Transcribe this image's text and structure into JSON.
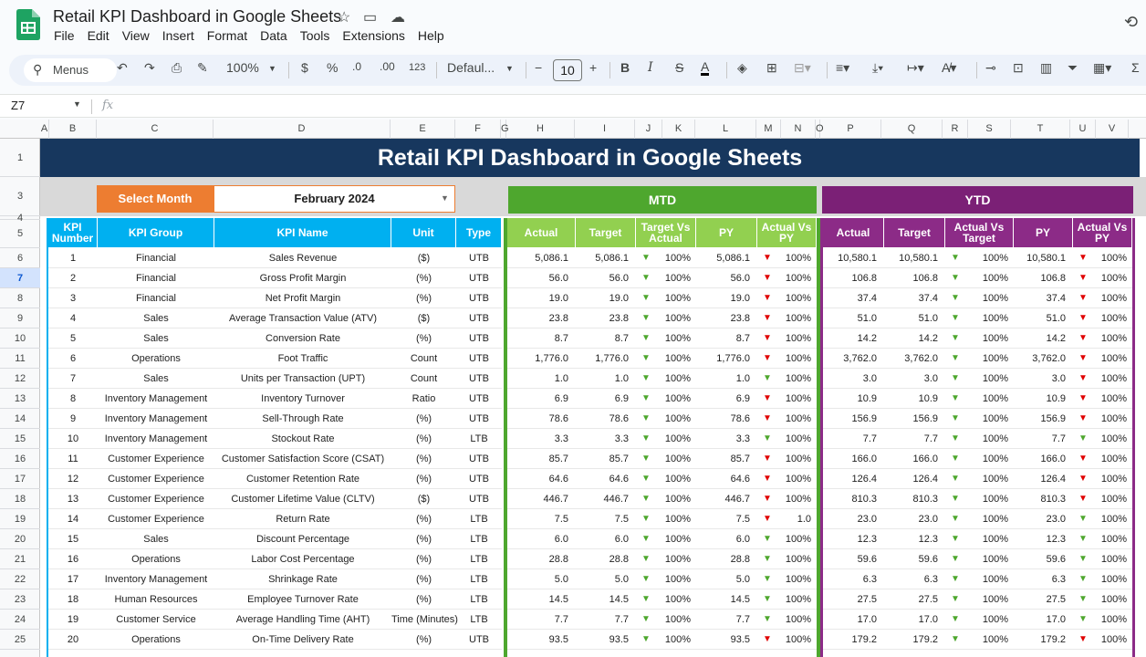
{
  "window": {
    "title": "Retail KPI Dashboard in Google Sheets",
    "app_icon": "google-sheets-icon"
  },
  "menu": [
    "File",
    "Edit",
    "View",
    "Insert",
    "Format",
    "Data",
    "Tools",
    "Extensions",
    "Help"
  ],
  "toolbar": {
    "menus_label": "Menus",
    "zoom": "100%",
    "currency": "$",
    "percent": "%",
    "dec_decrease": ".0",
    "dec_increase": ".00",
    "num_format": "123",
    "font": "Defaul...",
    "font_size": "10",
    "bold": "B",
    "italic": "I",
    "strike": "S",
    "text_color": "A"
  },
  "formula_bar": {
    "name_box": "Z7",
    "fx": "fx"
  },
  "columns": [
    "A",
    "B",
    "C",
    "D",
    "E",
    "F",
    "G",
    "H",
    "I",
    "J",
    "K",
    "L",
    "M",
    "N",
    "O",
    "P",
    "Q",
    "R",
    "S",
    "T",
    "U",
    "V"
  ],
  "row_numbers": [
    "1",
    "3",
    "4",
    "5",
    "6",
    "7",
    "8",
    "9",
    "10",
    "11",
    "12",
    "13",
    "14",
    "15",
    "16",
    "17",
    "18",
    "19",
    "20",
    "21",
    "22",
    "23",
    "24",
    "25"
  ],
  "selected_row": "7",
  "dashboard": {
    "title": "Retail KPI Dashboard in Google Sheets",
    "select_month_label": "Select Month",
    "selected_month": "February 2024",
    "mtd_label": "MTD",
    "ytd_label": "YTD",
    "headers": {
      "kpi_number": "KPI Number",
      "kpi_group": "KPI Group",
      "kpi_name": "KPI Name",
      "unit": "Unit",
      "type": "Type",
      "actual": "Actual",
      "target": "Target",
      "target_vs_actual": "Target Vs Actual",
      "py": "PY",
      "actual_vs_py": "Actual Vs PY",
      "actual_vs_target": "Actual Vs Target"
    },
    "colors": {
      "banner": "#17375e",
      "month_label": "#ed7d31",
      "mtd": "#4ea72e",
      "ytd": "#7b2076",
      "kpi_header": "#00b0f0",
      "up": "#4ea72e",
      "down": "#e00000"
    },
    "rows": [
      {
        "n": "1",
        "group": "Financial",
        "name": "Sales Revenue",
        "unit": "($)",
        "type": "UTB",
        "m_act": "5,086.1",
        "m_tgt": "5,086.1",
        "m_tva_dir": "up",
        "m_tva": "100%",
        "m_py": "5,086.1",
        "m_avp_dir": "down",
        "m_avp": "100%",
        "y_act": "10,580.1",
        "y_tgt": "10,580.1",
        "y_avt_dir": "up",
        "y_avt": "100%",
        "y_py": "10,580.1",
        "y_avp_dir": "down",
        "y_avp": "100%"
      },
      {
        "n": "2",
        "group": "Financial",
        "name": "Gross Profit Margin",
        "unit": "(%)",
        "type": "UTB",
        "m_act": "56.0",
        "m_tgt": "56.0",
        "m_tva_dir": "up",
        "m_tva": "100%",
        "m_py": "56.0",
        "m_avp_dir": "down",
        "m_avp": "100%",
        "y_act": "106.8",
        "y_tgt": "106.8",
        "y_avt_dir": "up",
        "y_avt": "100%",
        "y_py": "106.8",
        "y_avp_dir": "down",
        "y_avp": "100%"
      },
      {
        "n": "3",
        "group": "Financial",
        "name": "Net Profit Margin",
        "unit": "(%)",
        "type": "UTB",
        "m_act": "19.0",
        "m_tgt": "19.0",
        "m_tva_dir": "up",
        "m_tva": "100%",
        "m_py": "19.0",
        "m_avp_dir": "down",
        "m_avp": "100%",
        "y_act": "37.4",
        "y_tgt": "37.4",
        "y_avt_dir": "up",
        "y_avt": "100%",
        "y_py": "37.4",
        "y_avp_dir": "down",
        "y_avp": "100%"
      },
      {
        "n": "4",
        "group": "Sales",
        "name": "Average Transaction Value (ATV)",
        "unit": "($)",
        "type": "UTB",
        "m_act": "23.8",
        "m_tgt": "23.8",
        "m_tva_dir": "up",
        "m_tva": "100%",
        "m_py": "23.8",
        "m_avp_dir": "down",
        "m_avp": "100%",
        "y_act": "51.0",
        "y_tgt": "51.0",
        "y_avt_dir": "up",
        "y_avt": "100%",
        "y_py": "51.0",
        "y_avp_dir": "down",
        "y_avp": "100%"
      },
      {
        "n": "5",
        "group": "Sales",
        "name": "Conversion Rate",
        "unit": "(%)",
        "type": "UTB",
        "m_act": "8.7",
        "m_tgt": "8.7",
        "m_tva_dir": "up",
        "m_tva": "100%",
        "m_py": "8.7",
        "m_avp_dir": "down",
        "m_avp": "100%",
        "y_act": "14.2",
        "y_tgt": "14.2",
        "y_avt_dir": "up",
        "y_avt": "100%",
        "y_py": "14.2",
        "y_avp_dir": "down",
        "y_avp": "100%"
      },
      {
        "n": "6",
        "group": "Operations",
        "name": "Foot Traffic",
        "unit": "Count",
        "type": "UTB",
        "m_act": "1,776.0",
        "m_tgt": "1,776.0",
        "m_tva_dir": "up",
        "m_tva": "100%",
        "m_py": "1,776.0",
        "m_avp_dir": "down",
        "m_avp": "100%",
        "y_act": "3,762.0",
        "y_tgt": "3,762.0",
        "y_avt_dir": "up",
        "y_avt": "100%",
        "y_py": "3,762.0",
        "y_avp_dir": "down",
        "y_avp": "100%"
      },
      {
        "n": "7",
        "group": "Sales",
        "name": "Units per Transaction (UPT)",
        "unit": "Count",
        "type": "UTB",
        "m_act": "1.0",
        "m_tgt": "1.0",
        "m_tva_dir": "up",
        "m_tva": "100%",
        "m_py": "1.0",
        "m_avp_dir": "up",
        "m_avp": "100%",
        "y_act": "3.0",
        "y_tgt": "3.0",
        "y_avt_dir": "up",
        "y_avt": "100%",
        "y_py": "3.0",
        "y_avp_dir": "down",
        "y_avp": "100%"
      },
      {
        "n": "8",
        "group": "Inventory Management",
        "name": "Inventory Turnover",
        "unit": "Ratio",
        "type": "UTB",
        "m_act": "6.9",
        "m_tgt": "6.9",
        "m_tva_dir": "up",
        "m_tva": "100%",
        "m_py": "6.9",
        "m_avp_dir": "down",
        "m_avp": "100%",
        "y_act": "10.9",
        "y_tgt": "10.9",
        "y_avt_dir": "up",
        "y_avt": "100%",
        "y_py": "10.9",
        "y_avp_dir": "down",
        "y_avp": "100%"
      },
      {
        "n": "9",
        "group": "Inventory Management",
        "name": "Sell-Through Rate",
        "unit": "(%)",
        "type": "UTB",
        "m_act": "78.6",
        "m_tgt": "78.6",
        "m_tva_dir": "up",
        "m_tva": "100%",
        "m_py": "78.6",
        "m_avp_dir": "down",
        "m_avp": "100%",
        "y_act": "156.9",
        "y_tgt": "156.9",
        "y_avt_dir": "up",
        "y_avt": "100%",
        "y_py": "156.9",
        "y_avp_dir": "down",
        "y_avp": "100%"
      },
      {
        "n": "10",
        "group": "Inventory Management",
        "name": "Stockout Rate",
        "unit": "(%)",
        "type": "LTB",
        "m_act": "3.3",
        "m_tgt": "3.3",
        "m_tva_dir": "up",
        "m_tva": "100%",
        "m_py": "3.3",
        "m_avp_dir": "up",
        "m_avp": "100%",
        "y_act": "7.7",
        "y_tgt": "7.7",
        "y_avt_dir": "up",
        "y_avt": "100%",
        "y_py": "7.7",
        "y_avp_dir": "up",
        "y_avp": "100%"
      },
      {
        "n": "11",
        "group": "Customer Experience",
        "name": "Customer Satisfaction Score (CSAT)",
        "unit": "(%)",
        "type": "UTB",
        "m_act": "85.7",
        "m_tgt": "85.7",
        "m_tva_dir": "up",
        "m_tva": "100%",
        "m_py": "85.7",
        "m_avp_dir": "down",
        "m_avp": "100%",
        "y_act": "166.0",
        "y_tgt": "166.0",
        "y_avt_dir": "up",
        "y_avt": "100%",
        "y_py": "166.0",
        "y_avp_dir": "down",
        "y_avp": "100%"
      },
      {
        "n": "12",
        "group": "Customer Experience",
        "name": "Customer Retention Rate",
        "unit": "(%)",
        "type": "UTB",
        "m_act": "64.6",
        "m_tgt": "64.6",
        "m_tva_dir": "up",
        "m_tva": "100%",
        "m_py": "64.6",
        "m_avp_dir": "down",
        "m_avp": "100%",
        "y_act": "126.4",
        "y_tgt": "126.4",
        "y_avt_dir": "up",
        "y_avt": "100%",
        "y_py": "126.4",
        "y_avp_dir": "down",
        "y_avp": "100%"
      },
      {
        "n": "13",
        "group": "Customer Experience",
        "name": "Customer Lifetime Value (CLTV)",
        "unit": "($)",
        "type": "UTB",
        "m_act": "446.7",
        "m_tgt": "446.7",
        "m_tva_dir": "up",
        "m_tva": "100%",
        "m_py": "446.7",
        "m_avp_dir": "down",
        "m_avp": "100%",
        "y_act": "810.3",
        "y_tgt": "810.3",
        "y_avt_dir": "up",
        "y_avt": "100%",
        "y_py": "810.3",
        "y_avp_dir": "down",
        "y_avp": "100%"
      },
      {
        "n": "14",
        "group": "Customer Experience",
        "name": "Return Rate",
        "unit": "(%)",
        "type": "LTB",
        "m_act": "7.5",
        "m_tgt": "7.5",
        "m_tva_dir": "up",
        "m_tva": "100%",
        "m_py": "7.5",
        "m_avp_dir": "down",
        "m_avp": "1.0",
        "y_act": "23.0",
        "y_tgt": "23.0",
        "y_avt_dir": "up",
        "y_avt": "100%",
        "y_py": "23.0",
        "y_avp_dir": "up",
        "y_avp": "100%"
      },
      {
        "n": "15",
        "group": "Sales",
        "name": "Discount Percentage",
        "unit": "(%)",
        "type": "LTB",
        "m_act": "6.0",
        "m_tgt": "6.0",
        "m_tva_dir": "up",
        "m_tva": "100%",
        "m_py": "6.0",
        "m_avp_dir": "up",
        "m_avp": "100%",
        "y_act": "12.3",
        "y_tgt": "12.3",
        "y_avt_dir": "up",
        "y_avt": "100%",
        "y_py": "12.3",
        "y_avp_dir": "up",
        "y_avp": "100%"
      },
      {
        "n": "16",
        "group": "Operations",
        "name": "Labor Cost Percentage",
        "unit": "(%)",
        "type": "LTB",
        "m_act": "28.8",
        "m_tgt": "28.8",
        "m_tva_dir": "up",
        "m_tva": "100%",
        "m_py": "28.8",
        "m_avp_dir": "up",
        "m_avp": "100%",
        "y_act": "59.6",
        "y_tgt": "59.6",
        "y_avt_dir": "up",
        "y_avt": "100%",
        "y_py": "59.6",
        "y_avp_dir": "up",
        "y_avp": "100%"
      },
      {
        "n": "17",
        "group": "Inventory Management",
        "name": "Shrinkage Rate",
        "unit": "(%)",
        "type": "LTB",
        "m_act": "5.0",
        "m_tgt": "5.0",
        "m_tva_dir": "up",
        "m_tva": "100%",
        "m_py": "5.0",
        "m_avp_dir": "up",
        "m_avp": "100%",
        "y_act": "6.3",
        "y_tgt": "6.3",
        "y_avt_dir": "up",
        "y_avt": "100%",
        "y_py": "6.3",
        "y_avp_dir": "up",
        "y_avp": "100%"
      },
      {
        "n": "18",
        "group": "Human Resources",
        "name": "Employee Turnover Rate",
        "unit": "(%)",
        "type": "LTB",
        "m_act": "14.5",
        "m_tgt": "14.5",
        "m_tva_dir": "up",
        "m_tva": "100%",
        "m_py": "14.5",
        "m_avp_dir": "up",
        "m_avp": "100%",
        "y_act": "27.5",
        "y_tgt": "27.5",
        "y_avt_dir": "up",
        "y_avt": "100%",
        "y_py": "27.5",
        "y_avp_dir": "up",
        "y_avp": "100%"
      },
      {
        "n": "19",
        "group": "Customer Service",
        "name": "Average Handling Time (AHT)",
        "unit": "Time (Minutes)",
        "type": "LTB",
        "m_act": "7.7",
        "m_tgt": "7.7",
        "m_tva_dir": "up",
        "m_tva": "100%",
        "m_py": "7.7",
        "m_avp_dir": "up",
        "m_avp": "100%",
        "y_act": "17.0",
        "y_tgt": "17.0",
        "y_avt_dir": "up",
        "y_avt": "100%",
        "y_py": "17.0",
        "y_avp_dir": "up",
        "y_avp": "100%"
      },
      {
        "n": "20",
        "group": "Operations",
        "name": "On-Time Delivery Rate",
        "unit": "(%)",
        "type": "UTB",
        "m_act": "93.5",
        "m_tgt": "93.5",
        "m_tva_dir": "up",
        "m_tva": "100%",
        "m_py": "93.5",
        "m_avp_dir": "down",
        "m_avp": "100%",
        "y_act": "179.2",
        "y_tgt": "179.2",
        "y_avt_dir": "up",
        "y_avt": "100%",
        "y_py": "179.2",
        "y_avp_dir": "down",
        "y_avp": "100%"
      }
    ]
  }
}
